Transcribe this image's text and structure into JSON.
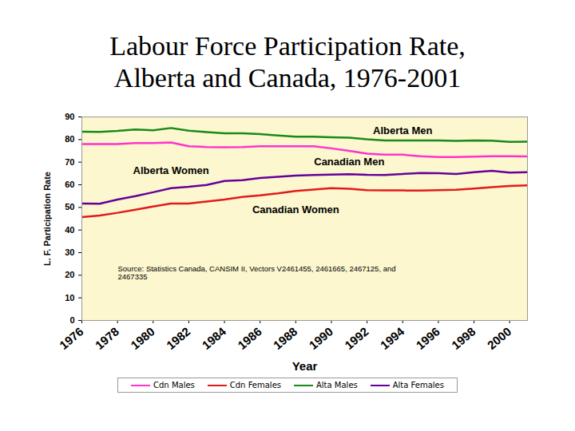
{
  "chart_data": {
    "type": "line",
    "title": "Labour Force Participation Rate, Alberta and Canada, 1976-2001",
    "x_label": "Year",
    "y_label": "L. F. Participation Rate",
    "source": "Source: Statistics Canada, CANSIM II, Vectors V2461455, 2461665, 2467125, and 2467335",
    "x": [
      1976,
      1977,
      1978,
      1979,
      1980,
      1981,
      1982,
      1983,
      1984,
      1985,
      1986,
      1987,
      1988,
      1989,
      1990,
      1991,
      1992,
      1993,
      1994,
      1995,
      1996,
      1997,
      1998,
      1999,
      2000,
      2001
    ],
    "xlim": [
      1976,
      2001
    ],
    "xticks": [
      1976,
      1978,
      1980,
      1982,
      1984,
      1986,
      1988,
      1990,
      1992,
      1994,
      1996,
      1998,
      2000
    ],
    "ylim": [
      0,
      90
    ],
    "yticks": [
      0,
      10,
      20,
      30,
      40,
      50,
      60,
      70,
      80,
      90
    ],
    "grid": false,
    "legend": "bottom",
    "series": [
      {
        "name": "Cdn Males",
        "color": "#ff33cc",
        "label": "Canadian Men",
        "values": [
          78,
          78,
          78,
          78.4,
          78.4,
          78.7,
          77,
          76.7,
          76.6,
          76.7,
          77,
          77,
          77,
          77,
          76.1,
          75,
          73.8,
          73.3,
          73.3,
          72.6,
          72.3,
          72.3,
          72.4,
          72.6,
          72.6,
          72.5
        ]
      },
      {
        "name": "Cdn Females",
        "color": "#e31a1c",
        "label": "Canadian Women",
        "values": [
          45.7,
          46.4,
          47.6,
          49,
          50.4,
          51.7,
          51.7,
          52.6,
          53.5,
          54.6,
          55.3,
          56.2,
          57.3,
          57.9,
          58.5,
          58.2,
          57.6,
          57.5,
          57.5,
          57.4,
          57.6,
          57.8,
          58.3,
          58.9,
          59.5,
          59.7
        ]
      },
      {
        "name": "Alta Males",
        "color": "#1a8a1a",
        "label": "Alberta Men",
        "values": [
          83.5,
          83.4,
          83.8,
          84.4,
          84.1,
          85.1,
          83.9,
          83.3,
          82.8,
          82.8,
          82.4,
          81.8,
          81.3,
          81.3,
          81,
          80.8,
          80.1,
          79.6,
          79.6,
          79.6,
          79.6,
          79.4,
          79.6,
          79.5,
          79,
          79.1
        ]
      },
      {
        "name": "Alta Females",
        "color": "#660099",
        "label": "Alberta Women",
        "values": [
          51.7,
          51.6,
          53.5,
          55,
          56.7,
          58.5,
          59.1,
          59.9,
          61.7,
          62,
          63,
          63.5,
          64.1,
          64.3,
          64.5,
          64.7,
          64.4,
          64.3,
          64.8,
          65.2,
          65.1,
          64.8,
          65.6,
          66.2,
          65.4,
          65.6
        ]
      }
    ]
  }
}
